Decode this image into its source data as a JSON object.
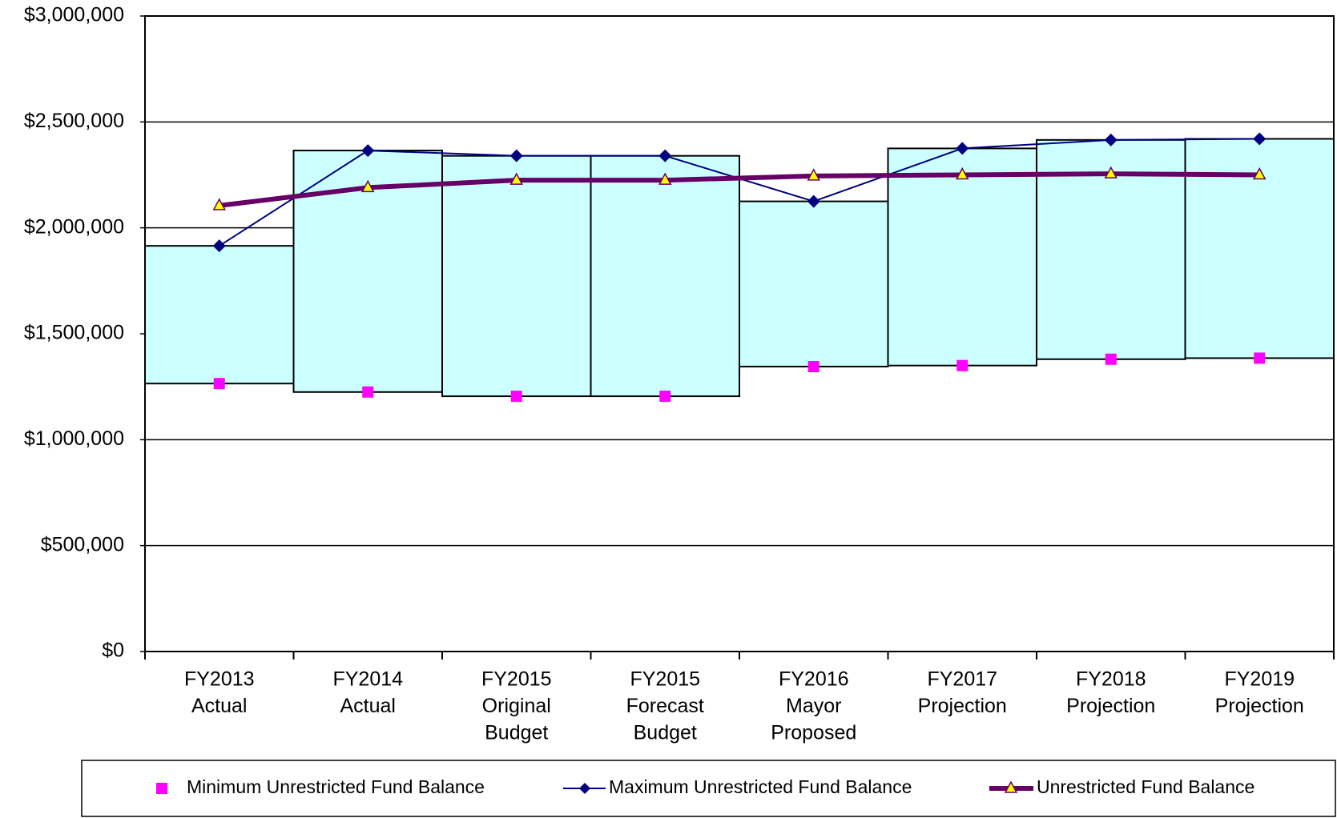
{
  "chart_data": {
    "type": "floating-box-line",
    "categories": [
      [
        "FY2013",
        "Actual"
      ],
      [
        "FY2014",
        "Actual"
      ],
      [
        "FY2015",
        "Original",
        "Budget"
      ],
      [
        "FY2015",
        "Forecast",
        "Budget"
      ],
      [
        "FY2016",
        "Mayor",
        "Proposed"
      ],
      [
        "FY2017",
        "Projection"
      ],
      [
        "FY2018",
        "Projection"
      ],
      [
        "FY2019",
        "Projection"
      ]
    ],
    "series": [
      {
        "name": "Minimum Unrestricted Fund Balance",
        "color": "#ff00ff",
        "values": [
          1265000,
          1225000,
          1205000,
          1205000,
          1345000,
          1350000,
          1380000,
          1385000
        ]
      },
      {
        "name": "Maximum Unrestricted Fund Balance",
        "color": "#000080",
        "values": [
          1915000,
          2365000,
          2340000,
          2340000,
          2125000,
          2375000,
          2415000,
          2420000
        ]
      },
      {
        "name": "Unrestricted Fund Balance",
        "color": "#660066",
        "marker_color": "#ffff00",
        "values": [
          2105000,
          2190000,
          2225000,
          2225000,
          2245000,
          2250000,
          2255000,
          2250000
        ]
      }
    ],
    "box_color": "#ccffff",
    "ylim": [
      0,
      3000000
    ],
    "yticks": [
      {
        "value": 0,
        "label": "$0"
      },
      {
        "value": 500000,
        "label": "$500,000"
      },
      {
        "value": 1000000,
        "label": "$1,000,000"
      },
      {
        "value": 1500000,
        "label": "$1,500,000"
      },
      {
        "value": 2000000,
        "label": "$2,000,000"
      },
      {
        "value": 2500000,
        "label": "$2,500,000"
      },
      {
        "value": 3000000,
        "label": "$3,000,000"
      }
    ],
    "grid": true,
    "legend": "bottom"
  }
}
